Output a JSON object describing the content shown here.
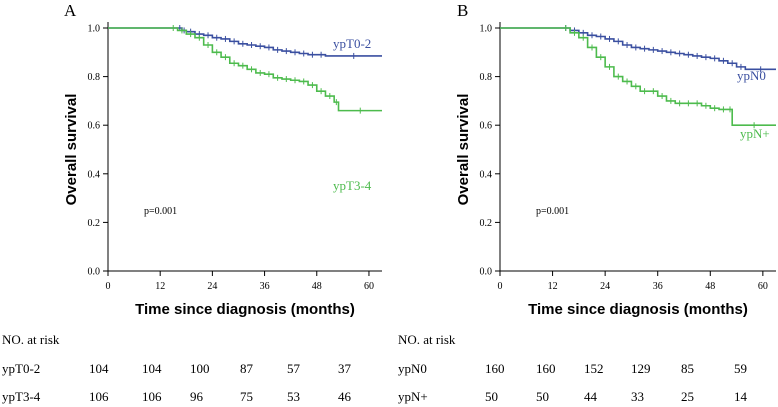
{
  "chart_data": [
    {
      "type": "line",
      "panel_label": "A",
      "ylabel": "Overall survival",
      "xlabel": "Time since diagnosis (months)",
      "xlim": [
        0,
        63
      ],
      "ylim": [
        0,
        1.0
      ],
      "xticks": [
        "0",
        "12",
        "24",
        "36",
        "48",
        "60"
      ],
      "yticks": [
        "0.0",
        "0.2",
        "0.4",
        "0.6",
        "0.8",
        "1.0"
      ],
      "annotation": "p=0.001",
      "series": [
        {
          "name": "ypT0-2",
          "color": "#3a4fa0",
          "x": [
            0,
            16,
            17,
            18,
            20,
            22,
            24,
            26,
            28,
            30,
            32,
            34,
            36,
            38,
            40,
            42,
            44,
            46,
            48,
            50,
            63
          ],
          "y": [
            1.0,
            1.0,
            0.99,
            0.985,
            0.975,
            0.97,
            0.96,
            0.955,
            0.945,
            0.935,
            0.93,
            0.925,
            0.92,
            0.91,
            0.905,
            0.9,
            0.895,
            0.89,
            0.89,
            0.885,
            0.885
          ]
        },
        {
          "name": "ypT3-4",
          "color": "#4dbb4d",
          "x": [
            0,
            14,
            16,
            18,
            20,
            22,
            24,
            26,
            28,
            30,
            32,
            34,
            36,
            38,
            40,
            42,
            44,
            46,
            48,
            50,
            52,
            53,
            63
          ],
          "y": [
            1.0,
            1.0,
            0.99,
            0.975,
            0.96,
            0.93,
            0.9,
            0.88,
            0.855,
            0.845,
            0.83,
            0.815,
            0.81,
            0.795,
            0.79,
            0.785,
            0.78,
            0.765,
            0.74,
            0.72,
            0.695,
            0.66,
            0.66
          ]
        }
      ],
      "at_risk": {
        "title": "NO. at risk",
        "rows": [
          {
            "label": "ypT0-2",
            "values": [
              "104",
              "104",
              "100",
              "87",
              "57",
              "37"
            ]
          },
          {
            "label": "ypT3-4",
            "values": [
              "106",
              "106",
              "96",
              "75",
              "53",
              "46"
            ]
          }
        ]
      }
    },
    {
      "type": "line",
      "panel_label": "B",
      "ylabel": "Overall survival",
      "xlabel": "Time since diagnosis (months)",
      "xlim": [
        0,
        63
      ],
      "ylim": [
        0,
        1.0
      ],
      "xticks": [
        "0",
        "12",
        "24",
        "36",
        "48",
        "60"
      ],
      "yticks": [
        "0.0",
        "0.2",
        "0.4",
        "0.6",
        "0.8",
        "1.0"
      ],
      "annotation": "p=0.001",
      "series": [
        {
          "name": "ypN0",
          "color": "#3a4fa0",
          "x": [
            0,
            14,
            16,
            18,
            20,
            22,
            24,
            26,
            28,
            30,
            32,
            34,
            36,
            38,
            40,
            42,
            44,
            46,
            48,
            50,
            52,
            54,
            56,
            63
          ],
          "y": [
            1.0,
            1.0,
            0.99,
            0.98,
            0.97,
            0.965,
            0.955,
            0.945,
            0.93,
            0.92,
            0.915,
            0.91,
            0.905,
            0.9,
            0.895,
            0.89,
            0.885,
            0.88,
            0.875,
            0.865,
            0.855,
            0.84,
            0.83,
            0.83
          ]
        },
        {
          "name": "ypN+",
          "color": "#4dbb4d",
          "x": [
            0,
            14,
            16,
            18,
            20,
            22,
            24,
            26,
            28,
            30,
            32,
            34,
            36,
            38,
            40,
            42,
            44,
            46,
            48,
            50,
            52,
            53,
            63
          ],
          "y": [
            1.0,
            1.0,
            0.98,
            0.96,
            0.92,
            0.88,
            0.84,
            0.8,
            0.78,
            0.76,
            0.74,
            0.74,
            0.72,
            0.7,
            0.69,
            0.69,
            0.69,
            0.68,
            0.67,
            0.665,
            0.665,
            0.6,
            0.6
          ]
        }
      ],
      "at_risk": {
        "title": "NO. at risk",
        "rows": [
          {
            "label": "ypN0",
            "values": [
              "160",
              "160",
              "152",
              "129",
              "85",
              "59"
            ]
          },
          {
            "label": "ypN+",
            "values": [
              "50",
              "50",
              "44",
              "33",
              "25",
              "14"
            ]
          }
        ]
      }
    }
  ]
}
